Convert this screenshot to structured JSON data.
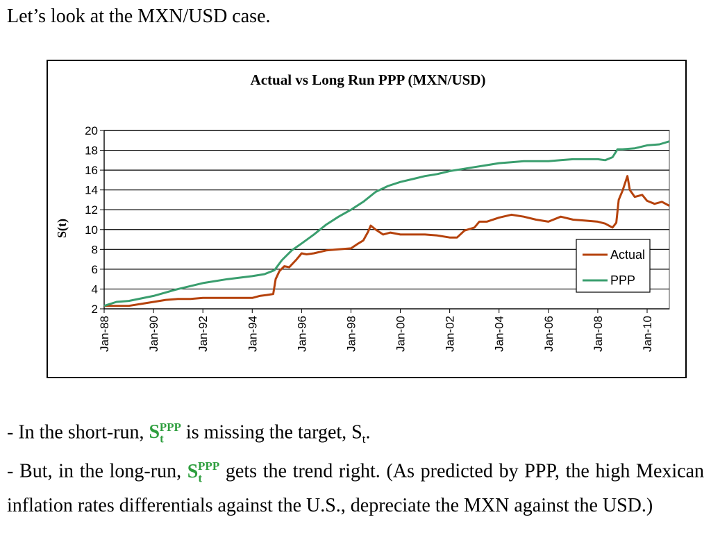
{
  "intro_text": "Let’s look at the MXN/USD case.",
  "bullets": {
    "b1_prefix": "- In the short-run, ",
    "b1_symbol": "S",
    "b1_sub": "t",
    "b1_sup": "PPP",
    "b1_middle": " is missing the target, S",
    "b1_target_sub": "t",
    "b1_end": ".",
    "b2_prefix": "- But, in the long-run, ",
    "b2_symbol": "S",
    "b2_sub": "t",
    "b2_sup": "PPP",
    "b2_rest": " gets the trend right. (As predicted by PPP, the high Mexican inflation rates differentials against the U.S., depreciate the MXN against the USD.)"
  },
  "colors": {
    "actual": "#b5420c",
    "ppp": "#3a9e6e",
    "highlight": "#2e9e3e"
  },
  "chart_data": {
    "type": "line",
    "title": "Actual vs Long Run PPP (MXN/USD)",
    "xlabel": "",
    "ylabel": "S(t)",
    "xlim": [
      1988.0,
      2010.9
    ],
    "ylim": [
      2,
      20
    ],
    "yticks": [
      2,
      4,
      6,
      8,
      10,
      12,
      14,
      16,
      18,
      20
    ],
    "xticks": [
      {
        "x": 1988,
        "label": "Jan-88"
      },
      {
        "x": 1990,
        "label": "Jan-90"
      },
      {
        "x": 1992,
        "label": "Jan-92"
      },
      {
        "x": 1994,
        "label": "Jan-94"
      },
      {
        "x": 1996,
        "label": "Jan-96"
      },
      {
        "x": 1998,
        "label": "Jan-98"
      },
      {
        "x": 2000,
        "label": "Jan-00"
      },
      {
        "x": 2002,
        "label": "Jan-02"
      },
      {
        "x": 2004,
        "label": "Jan-04"
      },
      {
        "x": 2006,
        "label": "Jan-06"
      },
      {
        "x": 2008,
        "label": "Jan-08"
      },
      {
        "x": 2010,
        "label": "Jan-10"
      }
    ],
    "grid": true,
    "legend_position": "right",
    "series": [
      {
        "name": "Actual",
        "x": [
          1988.0,
          1988.2,
          1989.0,
          1989.5,
          1990.0,
          1990.5,
          1991.0,
          1991.5,
          1992.0,
          1992.5,
          1993.0,
          1993.5,
          1994.0,
          1994.3,
          1994.6,
          1994.85,
          1994.95,
          1995.1,
          1995.3,
          1995.5,
          1995.8,
          1996.0,
          1996.2,
          1996.5,
          1997.0,
          1997.5,
          1998.0,
          1998.3,
          1998.5,
          1998.7,
          1998.8,
          1999.0,
          1999.3,
          1999.6,
          2000.0,
          2000.5,
          2001.0,
          2001.5,
          2002.0,
          2002.3,
          2002.6,
          2003.0,
          2003.2,
          2003.5,
          2004.0,
          2004.5,
          2005.0,
          2005.5,
          2006.0,
          2006.5,
          2007.0,
          2007.5,
          2008.0,
          2008.3,
          2008.6,
          2008.75,
          2008.85,
          2009.0,
          2009.2,
          2009.3,
          2009.5,
          2009.8,
          2010.0,
          2010.3,
          2010.6,
          2010.9
        ],
        "y": [
          2.3,
          2.3,
          2.3,
          2.5,
          2.7,
          2.9,
          3.0,
          3.0,
          3.1,
          3.1,
          3.1,
          3.1,
          3.1,
          3.3,
          3.4,
          3.5,
          5.0,
          5.8,
          6.3,
          6.2,
          7.0,
          7.6,
          7.5,
          7.6,
          7.9,
          8.0,
          8.1,
          8.6,
          8.9,
          9.8,
          10.4,
          10.0,
          9.5,
          9.7,
          9.5,
          9.5,
          9.5,
          9.4,
          9.2,
          9.2,
          9.9,
          10.2,
          10.8,
          10.8,
          11.2,
          11.5,
          11.3,
          11.0,
          10.8,
          11.3,
          11.0,
          10.9,
          10.8,
          10.6,
          10.2,
          10.7,
          13.0,
          13.9,
          15.4,
          14.0,
          13.3,
          13.5,
          12.9,
          12.6,
          12.8,
          12.4
        ],
        "color": "#b5420c"
      },
      {
        "name": "PPP",
        "x": [
          1988.0,
          1988.5,
          1989.0,
          1990.0,
          1991.0,
          1992.0,
          1993.0,
          1994.0,
          1994.5,
          1994.9,
          1995.2,
          1995.6,
          1996.0,
          1996.5,
          1997.0,
          1997.5,
          1998.0,
          1998.5,
          1999.0,
          1999.5,
          2000.0,
          2000.5,
          2001.0,
          2001.5,
          2002.0,
          2002.5,
          2003.0,
          2003.5,
          2004.0,
          2004.5,
          2005.0,
          2005.5,
          2006.0,
          2006.5,
          2007.0,
          2007.5,
          2008.0,
          2008.3,
          2008.6,
          2008.8,
          2009.0,
          2009.5,
          2010.0,
          2010.5,
          2010.9
        ],
        "y": [
          2.3,
          2.7,
          2.8,
          3.3,
          4.0,
          4.6,
          5.0,
          5.3,
          5.5,
          5.9,
          6.9,
          7.9,
          8.6,
          9.5,
          10.5,
          11.3,
          12.0,
          12.8,
          13.8,
          14.4,
          14.8,
          15.1,
          15.4,
          15.6,
          15.9,
          16.1,
          16.3,
          16.5,
          16.7,
          16.8,
          16.9,
          16.9,
          16.9,
          17.0,
          17.1,
          17.1,
          17.1,
          17.0,
          17.3,
          18.1,
          18.1,
          18.2,
          18.5,
          18.6,
          18.9
        ],
        "color": "#3a9e6e"
      }
    ]
  }
}
